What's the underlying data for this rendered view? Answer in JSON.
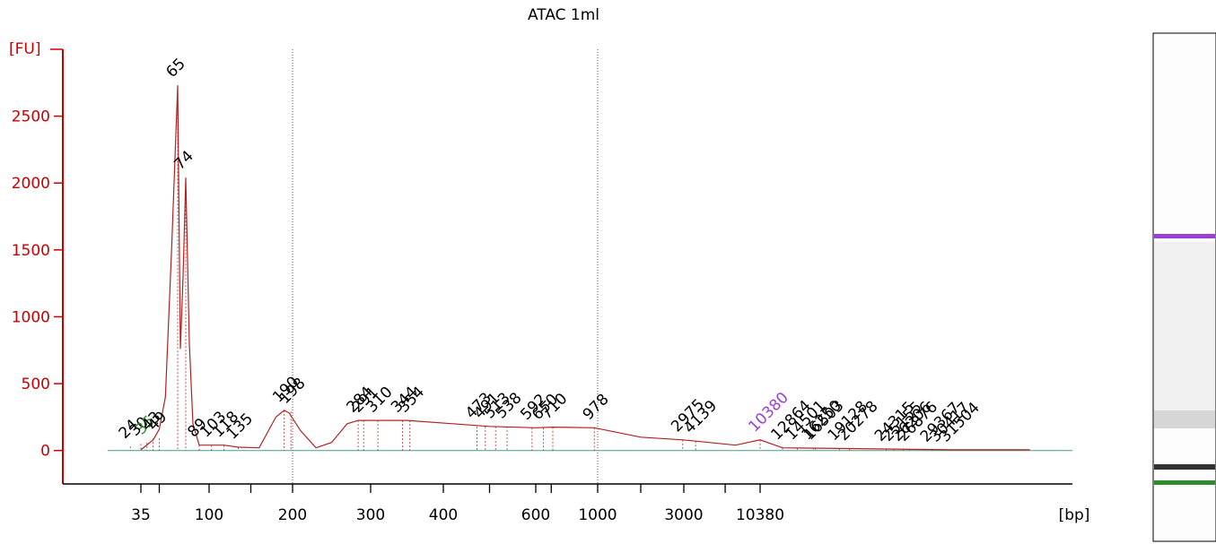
{
  "chart_data": {
    "type": "line",
    "title": "ATAC 1ml",
    "ylabel": "[FU]",
    "xlabel": "[bp]",
    "ylim": [
      -250,
      3000
    ],
    "y_ticks": [
      0,
      500,
      1000,
      1500,
      2000,
      2500
    ],
    "x_tick_labels": [
      "35",
      "100",
      "200",
      "300",
      "400",
      "600",
      "1000",
      "3000",
      "10380"
    ],
    "grid": "vertical dotted lines at 200 and 1000 bp",
    "series": [
      {
        "values": [
          {
            "bp": 35,
            "fu": 5
          },
          {
            "bp": 45,
            "fu": 80
          },
          {
            "bp": 50,
            "fu": 160
          },
          {
            "bp": 55,
            "fu": 400
          },
          {
            "bp": 60,
            "fu": 1500
          },
          {
            "bp": 65,
            "fu": 2730
          },
          {
            "bp": 68,
            "fu": 760
          },
          {
            "bp": 71,
            "fu": 1300
          },
          {
            "bp": 74,
            "fu": 2040
          },
          {
            "bp": 78,
            "fu": 800
          },
          {
            "bp": 82,
            "fu": 200
          },
          {
            "bp": 89,
            "fu": 40
          },
          {
            "bp": 103,
            "fu": 40
          },
          {
            "bp": 118,
            "fu": 40
          },
          {
            "bp": 135,
            "fu": 25
          },
          {
            "bp": 160,
            "fu": 20
          },
          {
            "bp": 180,
            "fu": 250
          },
          {
            "bp": 190,
            "fu": 300
          },
          {
            "bp": 196,
            "fu": 280
          },
          {
            "bp": 210,
            "fu": 150
          },
          {
            "bp": 230,
            "fu": 20
          },
          {
            "bp": 250,
            "fu": 60
          },
          {
            "bp": 270,
            "fu": 200
          },
          {
            "bp": 284,
            "fu": 225
          },
          {
            "bp": 350,
            "fu": 225
          },
          {
            "bp": 420,
            "fu": 200
          },
          {
            "bp": 500,
            "fu": 180
          },
          {
            "bp": 600,
            "fu": 170
          },
          {
            "bp": 710,
            "fu": 175
          },
          {
            "bp": 978,
            "fu": 170
          },
          {
            "bp": 2000,
            "fu": 100
          },
          {
            "bp": 2975,
            "fu": 80
          },
          {
            "bp": 4139,
            "fu": 70
          },
          {
            "bp": 8000,
            "fu": 40
          },
          {
            "bp": 10380,
            "fu": 80
          },
          {
            "bp": 12864,
            "fu": 20
          },
          {
            "bp": 20278,
            "fu": 15
          },
          {
            "bp": 31504,
            "fu": 5
          },
          {
            "bp": 50000,
            "fu": 5
          }
        ]
      }
    ],
    "peak_labels": [
      {
        "text": "24",
        "bp": 30,
        "fu": 30
      },
      {
        "text": "30",
        "bp": 35,
        "fu": 50
      },
      {
        "text": "35",
        "bp": 40,
        "fu": 60,
        "color": "#2e8b2e"
      },
      {
        "text": "43",
        "bp": 45,
        "fu": 90
      },
      {
        "text": "49",
        "bp": 50,
        "fu": 90
      },
      {
        "text": "65",
        "bp": 65,
        "fu": 2730
      },
      {
        "text": "74",
        "bp": 74,
        "fu": 2040
      },
      {
        "text": "89",
        "bp": 89,
        "fu": 40
      },
      {
        "text": "103",
        "bp": 103,
        "fu": 40
      },
      {
        "text": "118",
        "bp": 118,
        "fu": 40
      },
      {
        "text": "135",
        "bp": 135,
        "fu": 25
      },
      {
        "text": "190",
        "bp": 190,
        "fu": 300
      },
      {
        "text": "198",
        "bp": 198,
        "fu": 290
      },
      {
        "text": "284",
        "bp": 284,
        "fu": 225
      },
      {
        "text": "291",
        "bp": 291,
        "fu": 225
      },
      {
        "text": "310",
        "bp": 310,
        "fu": 225
      },
      {
        "text": "344",
        "bp": 344,
        "fu": 225
      },
      {
        "text": "354",
        "bp": 354,
        "fu": 225
      },
      {
        "text": "473",
        "bp": 473,
        "fu": 180
      },
      {
        "text": "491",
        "bp": 491,
        "fu": 180
      },
      {
        "text": "513",
        "bp": 513,
        "fu": 180
      },
      {
        "text": "538",
        "bp": 538,
        "fu": 180
      },
      {
        "text": "592",
        "bp": 592,
        "fu": 170
      },
      {
        "text": "650",
        "bp": 650,
        "fu": 170
      },
      {
        "text": "710",
        "bp": 710,
        "fu": 175
      },
      {
        "text": "978",
        "bp": 978,
        "fu": 170
      },
      {
        "text": "2975",
        "bp": 2975,
        "fu": 80
      },
      {
        "text": "4139",
        "bp": 4139,
        "fu": 70
      },
      {
        "text": "10380",
        "bp": 10380,
        "fu": 80,
        "color": "#9b3fd6"
      },
      {
        "text": "12864",
        "bp": 12864,
        "fu": 20
      },
      {
        "text": "14501",
        "bp": 14501,
        "fu": 20
      },
      {
        "text": "16250",
        "bp": 16250,
        "fu": 20
      },
      {
        "text": "16503",
        "bp": 16503,
        "fu": 20
      },
      {
        "text": "19128",
        "bp": 19128,
        "fu": 15
      },
      {
        "text": "20278",
        "bp": 20278,
        "fu": 15
      },
      {
        "text": "24315",
        "bp": 24315,
        "fu": 10
      },
      {
        "text": "25155",
        "bp": 25155,
        "fu": 10
      },
      {
        "text": "26206",
        "bp": 26206,
        "fu": 10
      },
      {
        "text": "26876",
        "bp": 26876,
        "fu": 10
      },
      {
        "text": "29367",
        "bp": 29367,
        "fu": 5
      },
      {
        "text": "30417",
        "bp": 30417,
        "fu": 5
      },
      {
        "text": "31504",
        "bp": 31504,
        "fu": 5
      }
    ],
    "colors": {
      "trace": "#b22222",
      "axis": "#cc0000",
      "baseline": "#4a9a8a",
      "lower_marker": "#2e8b2e",
      "upper_marker": "#9b3fd6"
    }
  },
  "gel": {
    "bands": [
      {
        "bp": 10380,
        "color": "#9b3fd6"
      },
      {
        "bp": 35,
        "color": "#2e8b2e"
      }
    ]
  }
}
